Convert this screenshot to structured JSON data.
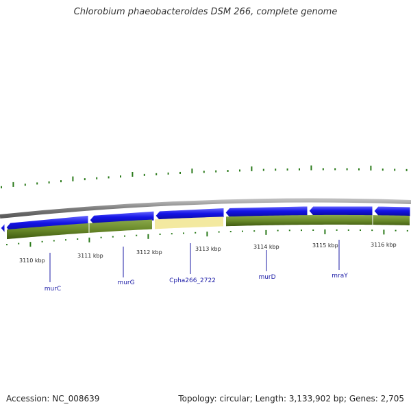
{
  "title": "Chlorobium phaeobacteroides DSM 266, complete genome",
  "footer": {
    "accession": "Accession: NC_008639",
    "summary": "Topology: circular; Length: 3,133,902 bp; Genes: 2,705"
  },
  "colors": {
    "gene_forward": "#1010e0",
    "gene_highlight": "#f3e9a0",
    "track_green": "#5a7a1e",
    "backbone": "#8a8a8a",
    "gc_tick": "#2a7a1a",
    "label": "#1a1aa6"
  },
  "scale": {
    "unit": "kbp",
    "ticks": [
      {
        "label": "3110 kbp"
      },
      {
        "label": "3111 kbp"
      },
      {
        "label": "3112 kbp"
      },
      {
        "label": "3113 kbp"
      },
      {
        "label": "3114 kbp"
      },
      {
        "label": "3115 kbp"
      },
      {
        "label": "3116 kbp"
      }
    ]
  },
  "genes": [
    {
      "name": "murC"
    },
    {
      "name": "murG"
    },
    {
      "name": "Cpha266_2722"
    },
    {
      "name": "murD"
    },
    {
      "name": "mraY"
    }
  ]
}
